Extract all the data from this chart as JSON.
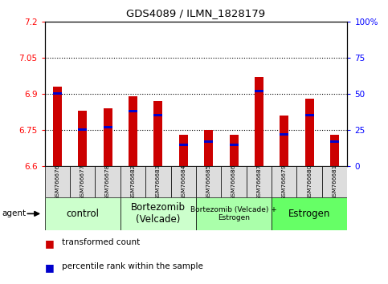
{
  "title": "GDS4089 / ILMN_1828179",
  "samples": [
    "GSM766676",
    "GSM766677",
    "GSM766678",
    "GSM766682",
    "GSM766683",
    "GSM766684",
    "GSM766685",
    "GSM766686",
    "GSM766687",
    "GSM766679",
    "GSM766680",
    "GSM766681"
  ],
  "transformed_count": [
    6.93,
    6.83,
    6.84,
    6.89,
    6.87,
    6.73,
    6.75,
    6.73,
    6.97,
    6.81,
    6.88,
    6.73
  ],
  "percentile_rank": [
    50,
    25,
    27,
    38,
    35,
    15,
    17,
    15,
    52,
    22,
    35,
    17
  ],
  "ymin": 6.6,
  "ymax": 7.2,
  "yticks": [
    6.6,
    6.75,
    6.9,
    7.05,
    7.2
  ],
  "ytick_labels": [
    "6.6",
    "6.75",
    "6.9",
    "7.05",
    "7.2"
  ],
  "right_yticks": [
    0,
    25,
    50,
    75,
    100
  ],
  "right_ytick_labels": [
    "0",
    "25",
    "50",
    "75",
    "100%"
  ],
  "bar_color": "#cc0000",
  "percentile_color": "#0000cc",
  "group_colors": [
    "#ccffcc",
    "#ccffcc",
    "#aaffaa",
    "#66ff66"
  ],
  "group_labels": [
    "control",
    "Bortezomib\n(Velcade)",
    "Bortezomib (Velcade) +\nEstrogen",
    "Estrogen"
  ],
  "group_starts": [
    0,
    3,
    6,
    9
  ],
  "group_ends": [
    2,
    5,
    8,
    11
  ],
  "bar_width": 0.35,
  "legend_red_label": "transformed count",
  "legend_blue_label": "percentile rank within the sample",
  "agent_label": "agent",
  "sample_box_color": "#dddddd"
}
